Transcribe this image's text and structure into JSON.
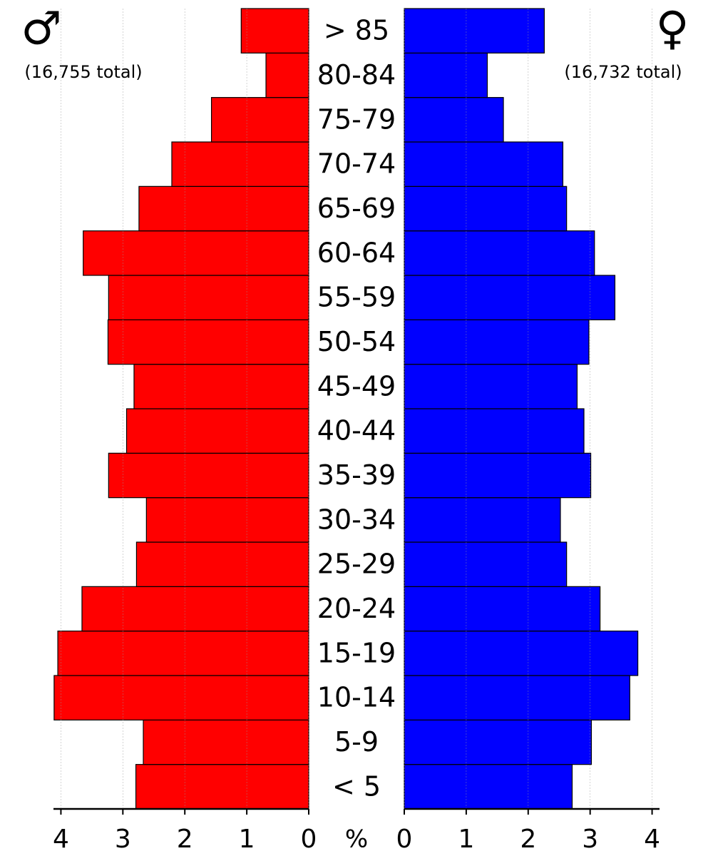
{
  "chart_data": {
    "type": "population-pyramid",
    "categories": [
      "< 5",
      "5-9",
      "10-14",
      "15-19",
      "20-24",
      "25-29",
      "30-34",
      "35-39",
      "40-44",
      "45-49",
      "50-54",
      "55-59",
      "60-64",
      "65-69",
      "70-74",
      "75-79",
      "80-84",
      "> 85"
    ],
    "series": [
      {
        "name": "♂",
        "total_label": "(16,755 total)",
        "color": "#ff0000",
        "side": "left",
        "values": [
          2.79,
          2.67,
          4.11,
          4.05,
          3.66,
          2.78,
          2.62,
          3.23,
          2.94,
          2.82,
          3.24,
          3.23,
          3.64,
          2.74,
          2.21,
          1.57,
          0.69,
          1.09
        ]
      },
      {
        "name": "♀",
        "total_label": "(16,732 total)",
        "color": "#0000ff",
        "side": "right",
        "values": [
          2.71,
          3.02,
          3.64,
          3.77,
          3.16,
          2.62,
          2.52,
          3.01,
          2.9,
          2.79,
          2.98,
          3.4,
          3.07,
          2.62,
          2.56,
          1.6,
          1.34,
          2.26
        ]
      }
    ],
    "xlabel": "%",
    "xlim": [
      0,
      4.12
    ],
    "xticks": [
      0,
      1,
      2,
      3,
      4
    ],
    "grid": true
  }
}
